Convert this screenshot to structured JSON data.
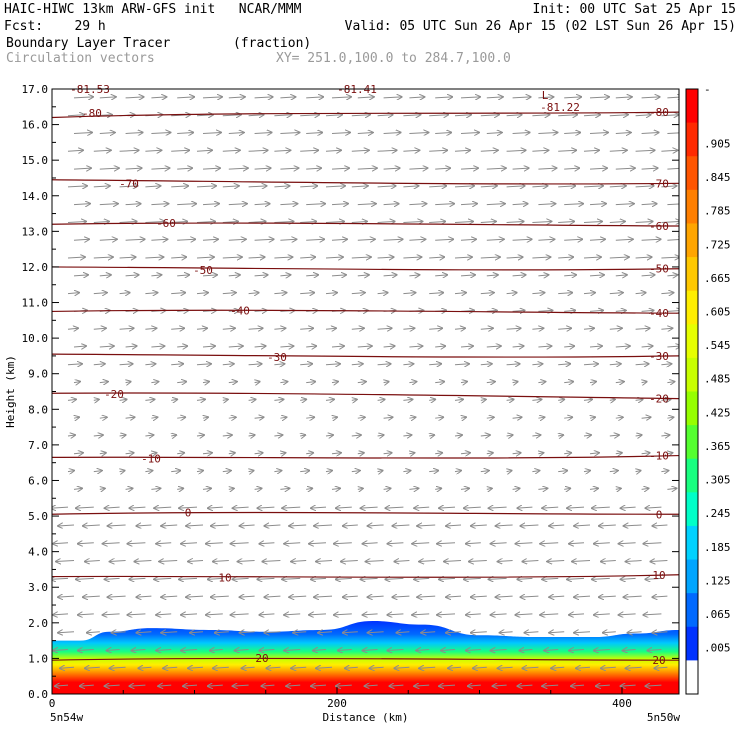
{
  "header": {
    "line1_left": "HAIC-HIWC 13km ARW-GFS init   NCAR/MMM",
    "line1_right": "Init: 00 UTC Sat 25 Apr 15",
    "line2_left": "Fcst:    29 h",
    "line2_right": "Valid: 05 UTC Sun 26 Apr 15 (02 LST Sun 26 Apr 15)",
    "line3_left": "Boundary Layer Tracer        (fraction)",
    "line4_left": "Circulation vectors",
    "line4_right": "XY= 251.0,100.0 to 284.7,100.0"
  },
  "chart_data": {
    "type": "heatmap",
    "title": "Boundary Layer Tracer (fraction)",
    "xlabel": "Distance (km)",
    "ylabel": "Height (km)",
    "xlim": [
      0,
      440
    ],
    "ylim": [
      0,
      17
    ],
    "x_ticks": [
      "0",
      "200",
      "400"
    ],
    "x_end_labels": [
      "5n54w",
      "5n50w"
    ],
    "y_ticks": [
      "0.0",
      "1.0",
      "2.0",
      "3.0",
      "4.0",
      "5.0",
      "6.0",
      "7.0",
      "8.0",
      "9.0",
      "10.0",
      "11.0",
      "12.0",
      "13.0",
      "14.0",
      "15.0",
      "16.0",
      "17.0"
    ],
    "tracer_top_km": [
      {
        "x": 0,
        "top": 1.5
      },
      {
        "x": 20,
        "top": 1.5
      },
      {
        "x": 40,
        "top": 1.75
      },
      {
        "x": 70,
        "top": 1.85
      },
      {
        "x": 110,
        "top": 1.8
      },
      {
        "x": 150,
        "top": 1.75
      },
      {
        "x": 190,
        "top": 1.8
      },
      {
        "x": 225,
        "top": 2.05
      },
      {
        "x": 260,
        "top": 1.95
      },
      {
        "x": 300,
        "top": 1.65
      },
      {
        "x": 340,
        "top": 1.6
      },
      {
        "x": 380,
        "top": 1.6
      },
      {
        "x": 410,
        "top": 1.7
      },
      {
        "x": 440,
        "top": 1.8
      }
    ],
    "isotherms_C": [
      {
        "value": "-80",
        "left_km": 16.2,
        "right_km": 16.35
      },
      {
        "value": "-70",
        "left_km": 14.45,
        "right_km": 14.35
      },
      {
        "value": "-60",
        "left_km": 13.2,
        "right_km": 13.15
      },
      {
        "value": "-50",
        "left_km": 12.0,
        "right_km": 11.95
      },
      {
        "value": "-40",
        "left_km": 10.75,
        "right_km": 10.7
      },
      {
        "value": "-30",
        "left_km": 9.55,
        "right_km": 9.5
      },
      {
        "value": "-20",
        "left_km": 8.45,
        "right_km": 8.3
      },
      {
        "value": "-10",
        "left_km": 6.65,
        "right_km": 6.7
      },
      {
        "value": "0",
        "left_km": 5.05,
        "right_km": 5.05
      },
      {
        "value": "10",
        "left_km": 3.3,
        "right_km": 3.35
      },
      {
        "value": "20",
        "left_km": 0.95,
        "right_km": 0.95
      }
    ],
    "extra_labels": [
      "L",
      "-81.22",
      "-81.41",
      "-81.53"
    ],
    "colorbar": {
      "labels": [
        "-",
        ".905",
        ".845",
        ".785",
        ".725",
        ".665",
        ".605",
        ".545",
        ".485",
        ".425",
        ".365",
        ".305",
        ".245",
        ".185",
        ".125",
        ".065",
        ".005"
      ],
      "colors": [
        "#ff0000",
        "#ff2a00",
        "#ff5500",
        "#ff7f00",
        "#ffa500",
        "#ffc800",
        "#ffee00",
        "#e6ff00",
        "#c8ff00",
        "#96ff00",
        "#55ff30",
        "#19ff80",
        "#00ffc8",
        "#00d2ff",
        "#00a5ff",
        "#0069ff",
        "#0032ff",
        "#ffffff"
      ]
    },
    "vectors": {
      "upper_layer": "westerly (pointing right) above ~5 km",
      "lower_layer": "easterly (pointing left) below ~5 km"
    },
    "colors": {
      "isotherm": "#7a0f0f",
      "vector": "#8c8c8c",
      "frame": "#000000"
    }
  }
}
